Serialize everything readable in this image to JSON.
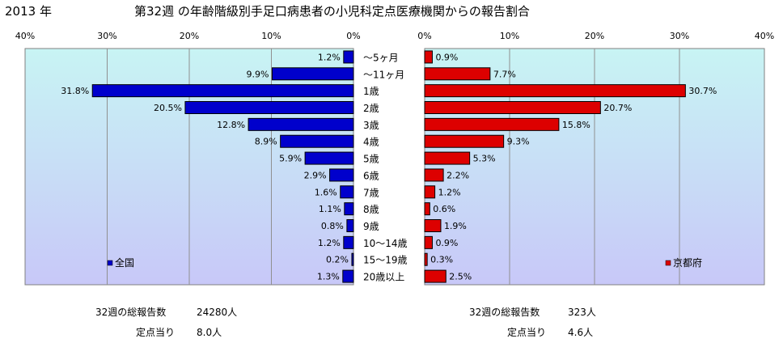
{
  "header": {
    "year": "2013 年",
    "title": "第32週 の年齢階級別手足口病患者の小児科定点医療機関からの報告割合"
  },
  "chart_data": {
    "type": "bar",
    "categories": [
      "〜5ヶ月",
      "〜11ヶ月",
      "1歳",
      "2歳",
      "3歳",
      "4歳",
      "5歳",
      "6歳",
      "7歳",
      "8歳",
      "9歳",
      "10〜14歳",
      "15〜19歳",
      "20歳以上"
    ],
    "xlim": [
      0,
      40
    ],
    "ticks": [
      "0%",
      "10%",
      "20%",
      "30%",
      "40%"
    ],
    "grid": true,
    "series": [
      {
        "name": "全国",
        "color": "#0000cc",
        "values": [
          1.2,
          9.9,
          31.8,
          20.5,
          12.8,
          8.9,
          5.9,
          2.9,
          1.6,
          1.1,
          0.8,
          1.2,
          0.2,
          1.3
        ],
        "labels": [
          "1.2%",
          "9.9%",
          "31.8%",
          "20.5%",
          "12.8%",
          "8.9%",
          "5.9%",
          "2.9%",
          "1.6%",
          "1.1%",
          "0.8%",
          "1.2%",
          "0.2%",
          "1.3%"
        ]
      },
      {
        "name": "京都府",
        "color": "#dd0000",
        "values": [
          0.9,
          7.7,
          30.7,
          20.7,
          15.8,
          9.3,
          5.3,
          2.2,
          1.2,
          0.6,
          1.9,
          0.9,
          0.3,
          2.5
        ],
        "labels": [
          "0.9%",
          "7.7%",
          "30.7%",
          "20.7%",
          "15.8%",
          "9.3%",
          "5.3%",
          "2.2%",
          "1.2%",
          "0.6%",
          "1.9%",
          "0.9%",
          "0.3%",
          "2.5%"
        ]
      }
    ]
  },
  "footer": {
    "national": {
      "total_label": "32週の総報告数",
      "total_value": "24280人",
      "per_label": "定点当り",
      "per_value": "8.0人"
    },
    "kyoto": {
      "total_label": "32週の総報告数",
      "total_value": "323人",
      "per_label": "定点当り",
      "per_value": "4.6人"
    }
  }
}
